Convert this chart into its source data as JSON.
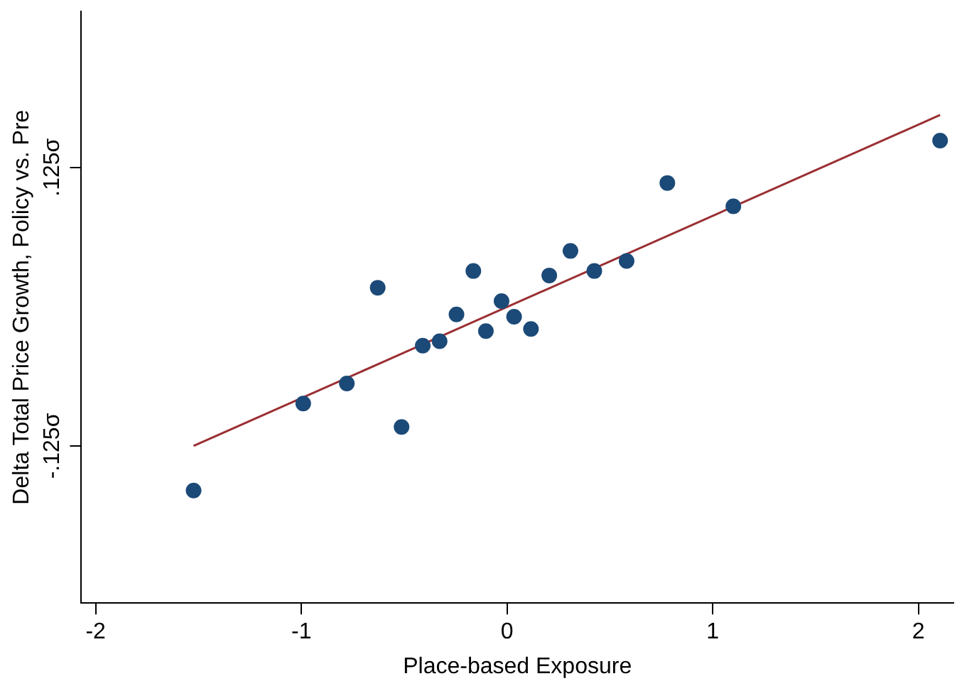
{
  "chart_data": {
    "type": "scatter",
    "xlabel": "Place-based Exposure",
    "ylabel": "Delta Total Price Growth, Policy vs. Pre",
    "xlim": [
      -2.07,
      2.17
    ],
    "ylim": [
      -0.266,
      0.265
    ],
    "xticks": [
      -2,
      -1,
      0,
      1,
      2
    ],
    "yticks": [
      {
        "value": -0.125,
        "label": "-.125σ"
      },
      {
        "value": 0.125,
        "label": ".125σ"
      }
    ],
    "grid": false,
    "legend": false,
    "marker": "circle",
    "series": [
      {
        "color": "#1c4a78",
        "x": [
          -1.524,
          -0.991,
          -0.779,
          -0.629,
          -0.513,
          -0.41,
          -0.328,
          -0.246,
          -0.164,
          -0.103,
          -0.027,
          0.034,
          0.116,
          0.205,
          0.308,
          0.424,
          0.581,
          0.779,
          1.1,
          2.105
        ],
        "values": [
          -0.165,
          -0.087,
          -0.069,
          0.017,
          -0.108,
          -0.035,
          -0.031,
          -0.007,
          0.032,
          -0.022,
          0.005,
          -0.009,
          -0.02,
          0.028,
          0.05,
          0.032,
          0.041,
          0.111,
          0.09,
          0.149
        ]
      },
      {
        "type": "line",
        "color": "#9b2f33",
        "marker": "none",
        "x": [
          -1.524,
          2.105
        ],
        "values": [
          -0.125,
          0.172
        ]
      }
    ]
  }
}
